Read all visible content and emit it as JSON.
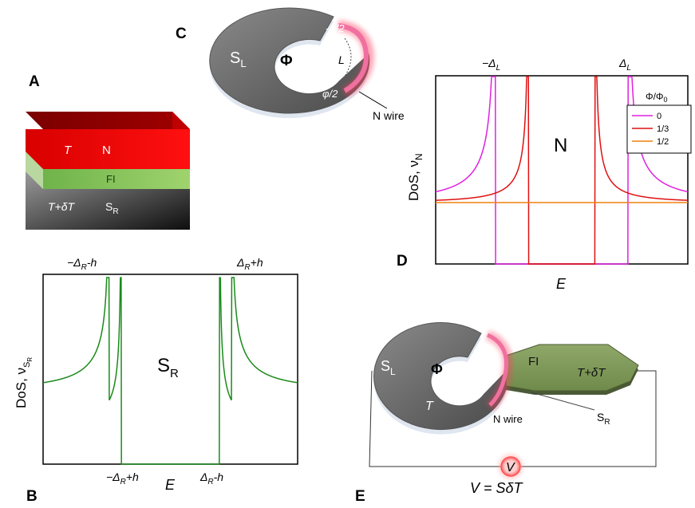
{
  "panels": {
    "a": "A",
    "b": "B",
    "c": "C",
    "d": "D",
    "e": "E"
  },
  "panel_a": {
    "top_temp": "T",
    "top_layer": "N",
    "mid_layer": "FI",
    "bottom_temp": "T+δT",
    "bottom_layer_base": "S",
    "bottom_layer_sub": "R"
  },
  "panel_c": {
    "ring_base": "S",
    "ring_sub": "L",
    "flux": "Φ",
    "phase_top": "-φ/2",
    "phase_bottom": "φ/2",
    "length": "L",
    "wire": "N wire"
  },
  "panel_b": {
    "ylabel_base": "DoS,  ν",
    "ylabel_sub": "S",
    "ylabel_subsub": "R",
    "xlabel": "E",
    "center_base": "S",
    "center_sub": "R",
    "top_left_pre": "−Δ",
    "top_left_sub": "R",
    "top_left_post": "-h",
    "top_right_pre": "Δ",
    "top_right_sub": "R",
    "top_right_post": "+h",
    "bot_left_pre": "−Δ",
    "bot_left_sub": "R",
    "bot_left_post": "+h",
    "bot_right_pre": "Δ",
    "bot_right_sub": "R",
    "bot_right_post": "-h"
  },
  "panel_d": {
    "ylabel_base": "DoS,  ν",
    "ylabel_sub": "N",
    "xlabel": "E",
    "center": "N",
    "top_left_pre": "−Δ",
    "top_left_sub": "L",
    "top_right_pre": "Δ",
    "top_right_sub": "L",
    "legend_title_base": "Φ/Φ",
    "legend_title_sub": "0",
    "legend": [
      {
        "label": "0",
        "color": "#e020e0"
      },
      {
        "label": "1/3",
        "color": "#e01010"
      },
      {
        "label": "1/2",
        "color": "#f08010"
      }
    ]
  },
  "panel_e": {
    "ring_base": "S",
    "ring_sub": "L",
    "flux": "Φ",
    "ring_temp": "T",
    "hex_layer": "FI",
    "hex_temp": "T+δT",
    "wire": "N wire",
    "sr_base": "S",
    "sr_sub": "R",
    "voltmeter": "V",
    "equation": "V = SδT"
  },
  "colors": {
    "green_curve": "#1a8a1a",
    "magenta": "#e020e0",
    "red": "#e01010",
    "orange": "#f08010"
  },
  "chart_data": [
    {
      "type": "line",
      "panel": "B",
      "xlabel": "E",
      "ylabel": "DoS, ν_{S_R}",
      "description_markers": [
        "−Δ_R-h",
        "−Δ_R+h",
        "Δ_R-h",
        "Δ_R+h"
      ],
      "x_gap_peaks": [
        -1.25,
        -1.0,
        1.0,
        1.25
      ],
      "series": [
        {
          "values_shape": "BCS density of states split by exchange field h",
          "color": "#1a8a1a"
        }
      ]
    },
    {
      "type": "line",
      "panel": "D",
      "xlabel": "E",
      "ylabel": "DoS, ν_N",
      "legend_title": "Φ/Φ_0",
      "series": [
        {
          "name": "0",
          "gap": 1.0,
          "color": "#e020e0"
        },
        {
          "name": "1/3",
          "gap": 0.5,
          "color": "#e01010"
        },
        {
          "name": "1/2",
          "gap": 0.0,
          "color": "#f08010"
        }
      ]
    }
  ]
}
